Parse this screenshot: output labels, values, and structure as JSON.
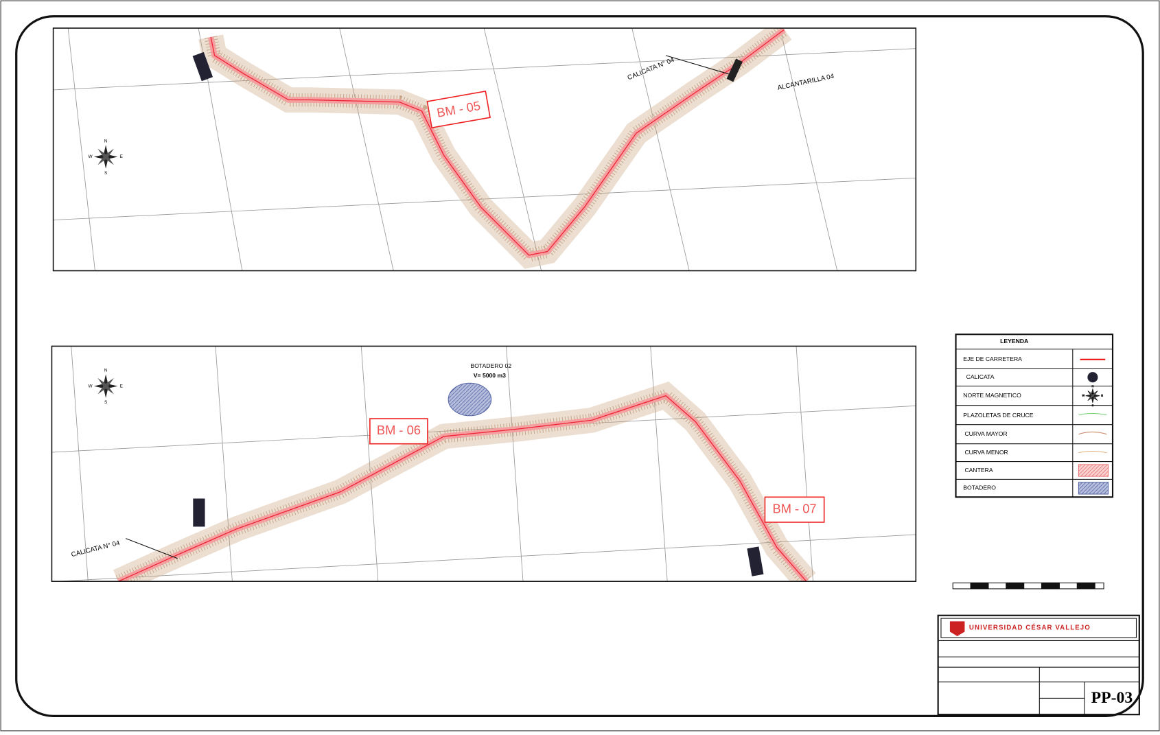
{
  "plan_top": {
    "labels": [
      "BM - 05",
      "CALICATA N° 04",
      "ALCANTARILLA 04"
    ]
  },
  "plan_bottom": {
    "labels": [
      "BM - 06",
      "BM - 07",
      "CALICATA N° 04",
      "BOTADERO 02",
      "V= 5000 m3"
    ]
  },
  "legend": {
    "title": "LEYENDA",
    "items": [
      "EJE DE CARRETERA",
      "CALICATA",
      "NORTE MAGNETICO",
      "PLAZOLETAS DE CRUCE",
      "CURVA MAYOR",
      "CURVA MENOR",
      "CANTERA",
      "BOTADERO"
    ]
  },
  "title_block": {
    "university": "UNIVERSIDAD CÉSAR VALLEJO",
    "sheet": "PP-03"
  }
}
